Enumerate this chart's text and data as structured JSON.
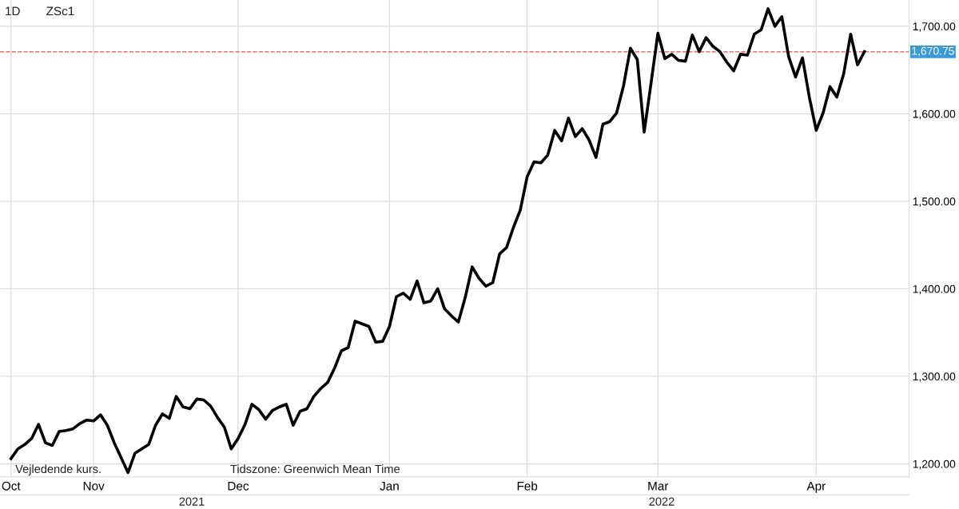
{
  "chart_data": {
    "type": "line",
    "categories": [
      "Oct",
      null,
      null,
      null,
      null,
      null,
      null,
      null,
      null,
      null,
      null,
      null,
      "Nov",
      null,
      null,
      null,
      null,
      null,
      null,
      null,
      null,
      null,
      null,
      null,
      null,
      null,
      null,
      null,
      null,
      null,
      null,
      null,
      null,
      "Dec",
      null,
      null,
      null,
      null,
      null,
      null,
      null,
      null,
      null,
      null,
      null,
      null,
      null,
      null,
      null,
      null,
      null,
      null,
      null,
      null,
      null,
      "Jan",
      null,
      null,
      null,
      null,
      null,
      null,
      null,
      null,
      null,
      null,
      null,
      null,
      null,
      null,
      null,
      null,
      null,
      null,
      null,
      "Feb",
      null,
      null,
      null,
      null,
      null,
      null,
      null,
      null,
      null,
      null,
      null,
      null,
      null,
      null,
      null,
      null,
      null,
      null,
      "Mar",
      null,
      null,
      null,
      null,
      null,
      null,
      null,
      null,
      null,
      null,
      null,
      null,
      null,
      null,
      null,
      null,
      null,
      null,
      null,
      null,
      null,
      null,
      "Apr",
      null,
      null,
      null,
      null,
      null,
      null,
      null,
      null,
      null,
      null,
      null,
      null,
      null
    ],
    "series": [
      {
        "color": "#000000",
        "values": [
          1206,
          1217,
          1222,
          1229,
          1245,
          1224,
          1221,
          1237,
          1238,
          1240,
          1246,
          1250,
          1249,
          1256,
          1244,
          1224,
          1207,
          1190,
          1212,
          1217,
          1222,
          1244,
          1257,
          1252,
          1277,
          1265,
          1263,
          1274,
          1273,
          1266,
          1253,
          1242,
          1217,
          1229,
          1245,
          1268,
          1262,
          1251,
          1261,
          1265,
          1268,
          1244,
          1260,
          1263,
          1277,
          1286,
          1293,
          1309,
          1329,
          1333,
          1363,
          1360,
          1357,
          1339,
          1340,
          1357,
          1391,
          1395,
          1388,
          1409,
          1384,
          1386,
          1400,
          1377,
          1369,
          1362,
          1390,
          1425,
          1412,
          1403,
          1407,
          1440,
          1447,
          1470,
          1490,
          1528,
          1545,
          1544,
          1553,
          1581,
          1569,
          1595,
          1574,
          1583,
          1570,
          1550,
          1588,
          1591,
          1601,
          1632,
          1675,
          1662,
          1579,
          1635,
          1692,
          1663,
          1668,
          1661,
          1660,
          1690,
          1671,
          1687,
          1677,
          1671,
          1659,
          1649,
          1668,
          1667,
          1691,
          1696,
          1720,
          1700,
          1711,
          1665,
          1642,
          1664,
          1619,
          1581,
          1601,
          1631,
          1619,
          1646,
          1691,
          1656,
          1671,
          null,
          null,
          null,
          null,
          null,
          null
        ]
      }
    ],
    "ylim": [
      1185,
      1730
    ],
    "yticks": [
      {
        "value": 1200,
        "label": "1,200.00"
      },
      {
        "value": 1300,
        "label": "1,300.00"
      },
      {
        "value": 1400,
        "label": "1,400.00"
      },
      {
        "value": 1500,
        "label": "1,500.00"
      },
      {
        "value": 1600,
        "label": "1,600.00"
      },
      {
        "value": 1700,
        "label": "1,700.00"
      }
    ],
    "ref_lines": [
      {
        "axis": "y",
        "value": 1670.75,
        "label": "1,670.75",
        "color": "#d9534f",
        "line_style": "dashed"
      }
    ],
    "annotations": [
      "1D",
      "ZSc1",
      "Vejledende kurs.",
      "Tidszone: Greenwich Mean Time",
      "2021",
      "2022"
    ],
    "grid": true,
    "legend": false,
    "marker": "none",
    "line_style": "solid"
  }
}
